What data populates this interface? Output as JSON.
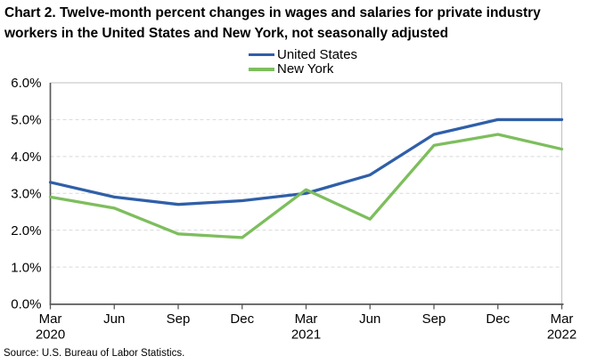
{
  "source": "Source: U.S. Bureau of Labor Statistics.",
  "chart_data": {
    "type": "line",
    "title": "Chart 2. Twelve-month percent changes in wages and salaries for private industry workers in the United States and New York, not seasonally adjusted",
    "categories": [
      "Mar 2020",
      "Jun",
      "Sep",
      "Dec",
      "Mar 2021",
      "Jun",
      "Sep",
      "Dec",
      "Mar 2022"
    ],
    "series": [
      {
        "name": "United States",
        "color": "#2F5FA8",
        "values": [
          3.3,
          2.9,
          2.7,
          2.8,
          3.0,
          3.5,
          4.6,
          5.0,
          5.0
        ]
      },
      {
        "name": "New York",
        "color": "#7DBE5D",
        "values": [
          2.9,
          2.6,
          1.9,
          1.8,
          3.1,
          2.3,
          4.3,
          4.6,
          4.2
        ]
      }
    ],
    "ylim": [
      0,
      6
    ],
    "y_tick_labels": [
      "0.0%",
      "1.0%",
      "2.0%",
      "3.0%",
      "4.0%",
      "5.0%",
      "6.0%"
    ],
    "xlabel": "",
    "ylabel": "",
    "grid": "horizontal-dashed",
    "legend_position": "top-center",
    "grid_color": "#D9D9D9",
    "border_color": "#BFBFBF",
    "axis_color": "#595959"
  }
}
